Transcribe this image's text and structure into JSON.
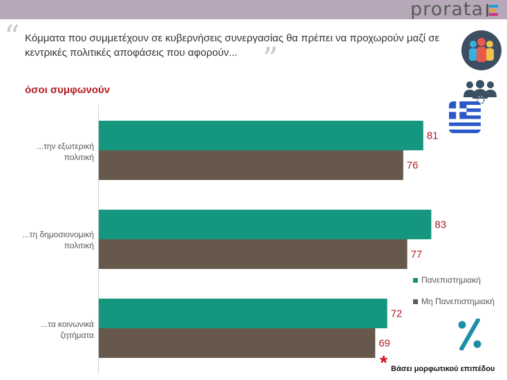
{
  "header": {
    "logo_text": "prorata"
  },
  "question": {
    "text": "Κόμματα που συμμετέχουν σε κυβερνήσεις συνεργασίας θα πρέπει να προχωρούν μαζί σε κεντρικές πολιτικές αποφάσεις που αφορούν...",
    "open_quote": "“",
    "close_quote": "”"
  },
  "subtitle": "όσοι συμφωνούν",
  "chart_data": {
    "type": "bar",
    "orientation": "horizontal",
    "categories": [
      "...την εξωτερική πολιτική",
      "...τη δημοσιονομική πολιτική",
      "...τα κοινωνικά ζητήματα"
    ],
    "series": [
      {
        "name": "Πανεπιστημιακή",
        "values": [
          81,
          83,
          72
        ],
        "color": "#15967e"
      },
      {
        "name": "Μη Πανεπιστημιακή",
        "values": [
          76,
          77,
          69
        ],
        "color": "#66594c"
      }
    ],
    "xlim": [
      0,
      100
    ],
    "legend_position": "right",
    "grid": false
  },
  "category_lines": [
    [
      "...την εξωτερική",
      "πολιτική"
    ],
    [
      "...τη δημοσιονομική",
      "πολιτική"
    ],
    [
      "...τα κοινωνικά",
      "ζητήματα"
    ]
  ],
  "footnote": {
    "mark": "*",
    "text": "Βάσει μορφωτικού επιπέδου"
  },
  "colors": {
    "accent_red": "#b01c22",
    "topbar": "#b6a8b8"
  },
  "icons": [
    "people-group-icon",
    "users-gear-icon",
    "greek-flag-icon",
    "percent-icon"
  ]
}
